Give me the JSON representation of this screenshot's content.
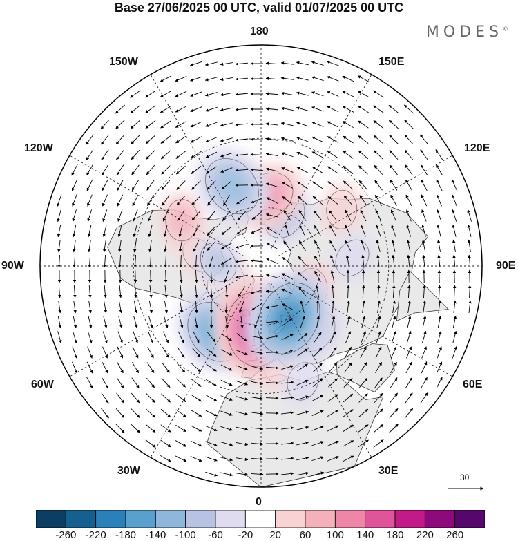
{
  "title": "Base 27/06/2025 00 UTC, valid 01/07/2025 00 UTC",
  "brand": "MODES",
  "brand_mark": "©",
  "projection": "north-polar-stereographic",
  "longitude_labels": {
    "top": "180",
    "bottom": "0",
    "left": "90W",
    "right": "90E",
    "upper_left_1": "150W",
    "upper_left_2": "120W",
    "upper_right_1": "150E",
    "upper_right_2": "120E",
    "lower_left_1": "60W",
    "lower_left_2": "30W",
    "lower_right_1": "60E",
    "lower_right_2": "30E"
  },
  "vector_reference": {
    "value": "30"
  },
  "colorbar": {
    "tick_labels": [
      "-260",
      "-220",
      "-180",
      "-140",
      "-100",
      "-60",
      "-20",
      "20",
      "60",
      "100",
      "140",
      "180",
      "220",
      "260"
    ],
    "colors": [
      "#0c3d62",
      "#16608f",
      "#2b80b9",
      "#5aa0cf",
      "#8fb7dc",
      "#b8c3e3",
      "#dfdcef",
      "#ffffff",
      "#f8d3d3",
      "#f4b0bb",
      "#ee86a8",
      "#e0559a",
      "#c21b87",
      "#8d0a7d",
      "#56076b"
    ]
  },
  "colors": {
    "land_fill": "#e9e9e9",
    "graticule": "#222222",
    "coastline": "#333333"
  },
  "anomaly_features": [
    {
      "sign": "positive",
      "value": 190,
      "lon": -5,
      "lat": 58
    },
    {
      "sign": "positive",
      "value": 120,
      "lon": 175,
      "lat": 55
    },
    {
      "sign": "positive",
      "value": 70,
      "lon": -120,
      "lat": 45
    },
    {
      "sign": "positive",
      "value": 70,
      "lon": 65,
      "lat": 62
    },
    {
      "sign": "positive",
      "value": 60,
      "lon": 10,
      "lat": 42
    },
    {
      "sign": "positive",
      "value": 60,
      "lon": -65,
      "lat": 72
    },
    {
      "sign": "positive",
      "value": 60,
      "lon": 125,
      "lat": 42
    },
    {
      "sign": "positive",
      "value": 50,
      "lon": -100,
      "lat": 58
    },
    {
      "sign": "negative",
      "value": -190,
      "lon": 28,
      "lat": 60
    },
    {
      "sign": "negative",
      "value": -150,
      "lon": -35,
      "lat": 50
    },
    {
      "sign": "negative",
      "value": -140,
      "lon": -160,
      "lat": 48
    },
    {
      "sign": "negative",
      "value": -90,
      "lon": 155,
      "lat": 62
    },
    {
      "sign": "negative",
      "value": -80,
      "lon": 40,
      "lat": 48
    },
    {
      "sign": "negative",
      "value": -70,
      "lon": -95,
      "lat": 68
    },
    {
      "sign": "negative",
      "value": -60,
      "lon": 95,
      "lat": 45
    },
    {
      "sign": "negative",
      "value": -60,
      "lon": 20,
      "lat": 32
    }
  ]
}
